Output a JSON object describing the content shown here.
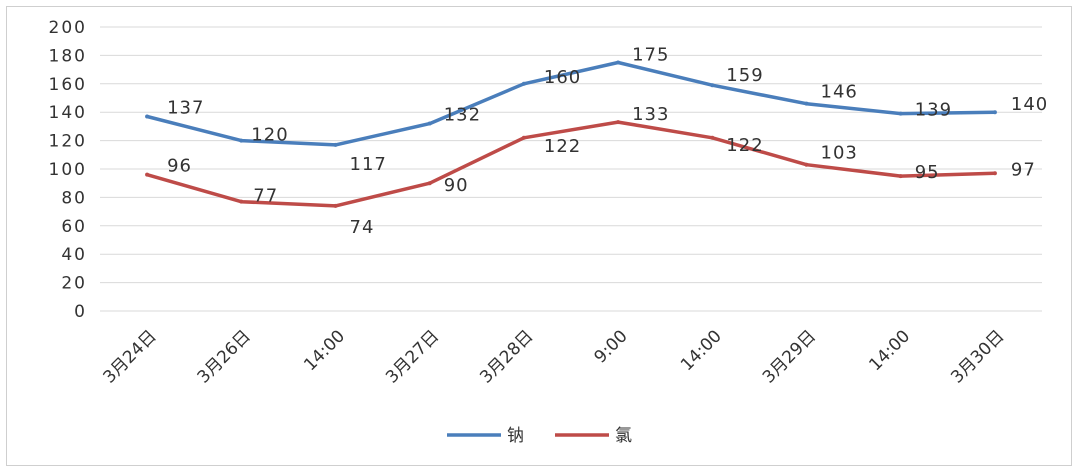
{
  "chart_data": {
    "type": "line",
    "categories": [
      "3月24日",
      "3月26日",
      "14:00",
      "3月27日",
      "3月28日",
      "9:00",
      "14:00",
      "3月29日",
      "14:00",
      "3月30日"
    ],
    "series": [
      {
        "name": "钠",
        "color": "#4a7ebb",
        "values": [
          137,
          120,
          117,
          132,
          160,
          175,
          159,
          146,
          139,
          140
        ]
      },
      {
        "name": "氯",
        "color": "#be4b48",
        "values": [
          96,
          77,
          74,
          90,
          122,
          133,
          122,
          103,
          95,
          97
        ]
      }
    ],
    "ylim": [
      0,
      200
    ],
    "yticks": [
      0,
      20,
      40,
      60,
      80,
      100,
      120,
      140,
      160,
      180,
      200
    ],
    "grid": true,
    "legend": "bottom"
  }
}
